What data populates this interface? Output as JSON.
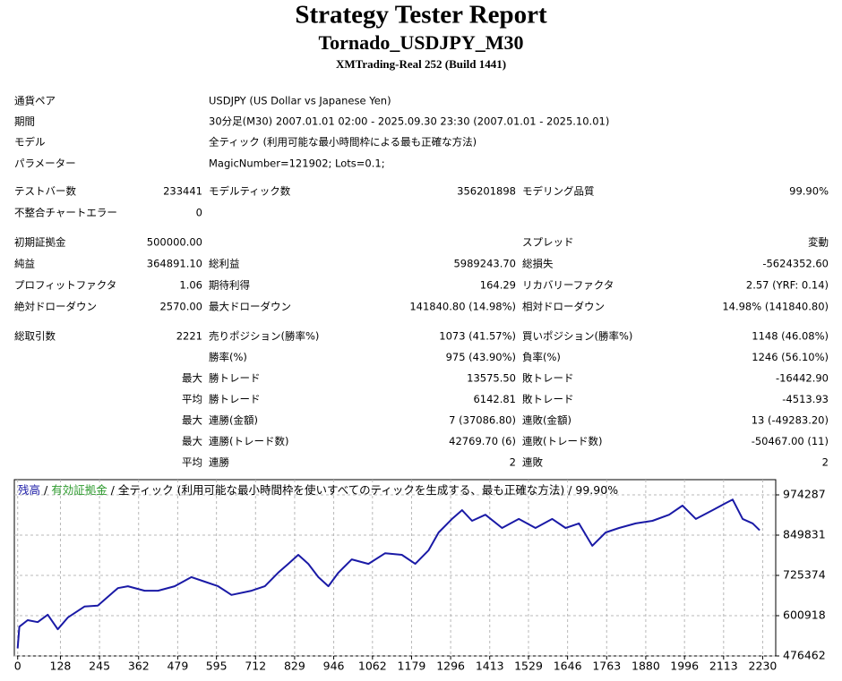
{
  "header": {
    "title": "Strategy Tester Report",
    "subtitle": "Tornado_USDJPY_M30",
    "server": "XMTrading-Real 252 (Build 1441)"
  },
  "info": [
    [
      "通貨ペア",
      "USDJPY (US Dollar vs Japanese Yen)"
    ],
    [
      "期間",
      "30分足(M30) 2007.01.01 02:00 - 2025.09.30 23:30 (2007.01.01 - 2025.10.01)"
    ],
    [
      "モデル",
      "全ティック (利用可能な最小時間枠による最も正確な方法)"
    ],
    [
      "パラメーター",
      "MagicNumber=121902; Lots=0.1;"
    ]
  ],
  "stats": [
    [
      [
        "テストバー数",
        "233441",
        "モデルティック数",
        "356201898",
        "モデリング品質",
        "99.90%"
      ],
      [
        "不整合チャートエラー",
        "0",
        null,
        null,
        null,
        null
      ]
    ],
    [
      [
        "初期証拠金",
        "500000.00",
        null,
        null,
        "スプレッド",
        "変動"
      ],
      [
        "純益",
        "364891.10",
        "総利益",
        "5989243.70",
        "総損失",
        "-5624352.60"
      ],
      [
        "プロフィットファクタ",
        "1.06",
        "期待利得",
        "164.29",
        "リカバリーファクタ",
        "2.57 (YRF: 0.14)"
      ],
      [
        "絶対ドローダウン",
        "2570.00",
        "最大ドローダウン",
        "141840.80 (14.98%)",
        "相対ドローダウン",
        "14.98% (141840.80)"
      ]
    ],
    [
      [
        "総取引数",
        "2221",
        "売りポジション(勝率%)",
        "1073 (41.57%)",
        "買いポジション(勝率%)",
        "1148 (46.08%)"
      ],
      [
        null,
        null,
        "勝率(%)",
        "975 (43.90%)",
        "負率(%)",
        "1246 (56.10%)"
      ],
      [
        null,
        "最大",
        "勝トレード",
        "13575.50",
        "敗トレード",
        "-16442.90"
      ],
      [
        null,
        "平均",
        "勝トレード",
        "6142.81",
        "敗トレード",
        "-4513.93"
      ],
      [
        null,
        "最大",
        "連勝(金額)",
        "7 (37086.80)",
        "連敗(金額)",
        "13 (-49283.20)"
      ],
      [
        null,
        "最大",
        "連勝(トレード数)",
        "42769.70 (6)",
        "連敗(トレード数)",
        "-50467.00 (11)"
      ],
      [
        null,
        "平均",
        "連勝",
        "2",
        "連敗",
        "2"
      ]
    ]
  ],
  "chart_data": {
    "type": "line",
    "legend": {
      "items": [
        {
          "text": "残高",
          "color": "#1a1aa6"
        },
        {
          "text": "有効証拠金",
          "color": "#2e9b2e"
        },
        {
          "text": "全ティック (利用可能な最小時間枠を使いすべてのティックを生成する、最も正確な方法)",
          "color": "#000000"
        },
        {
          "text": "99.90%",
          "color": "#000000"
        }
      ],
      "separator": " / "
    },
    "x": [
      0,
      5,
      30,
      60,
      90,
      120,
      150,
      200,
      240,
      300,
      330,
      380,
      420,
      470,
      520,
      560,
      600,
      640,
      700,
      740,
      780,
      810,
      840,
      870,
      900,
      930,
      960,
      1000,
      1050,
      1100,
      1150,
      1190,
      1230,
      1260,
      1300,
      1330,
      1360,
      1400,
      1450,
      1500,
      1550,
      1600,
      1640,
      1680,
      1720,
      1760,
      1800,
      1850,
      1900,
      1950,
      1990,
      2030,
      2080,
      2120,
      2140,
      2170,
      2200,
      2221
    ],
    "series": [
      {
        "color": "#1a1aa6",
        "values": [
          500000,
          567000,
          587000,
          581000,
          604000,
          559000,
          595000,
          629000,
          632000,
          686000,
          692000,
          678000,
          678000,
          692000,
          720000,
          706000,
          692000,
          665000,
          678000,
          692000,
          734000,
          761000,
          789000,
          761000,
          720000,
          692000,
          734000,
          775000,
          761000,
          794000,
          789000,
          761000,
          803000,
          858000,
          900000,
          927000,
          894000,
          913000,
          872000,
          900000,
          872000,
          900000,
          872000,
          886000,
          817000,
          858000,
          872000,
          886000,
          894000,
          913000,
          941000,
          900000,
          927000,
          949000,
          960000,
          900000,
          886000,
          864891
        ]
      }
    ],
    "xlim": [
      -10,
      2269
    ],
    "ylim": [
      476462,
      1021300
    ],
    "xticks": [
      0,
      128,
      245,
      362,
      479,
      595,
      712,
      829,
      946,
      1062,
      1179,
      1296,
      1413,
      1529,
      1646,
      1763,
      1880,
      1996,
      2113,
      2230
    ],
    "yticks": [
      476462,
      600918,
      725374,
      849831,
      974287
    ],
    "grid": true
  }
}
